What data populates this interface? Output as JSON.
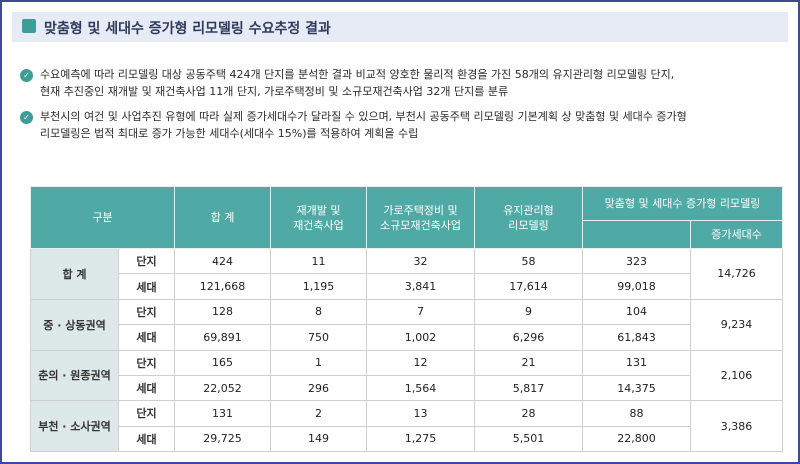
{
  "title": "맞춤형 및 세대수 증가형 리모델링 수요추정 결과",
  "bullets": [
    {
      "line1": "수요예측에 따라 리모델링 대상 공동주택 424개 단지를 분석한 결과 비교적 양호한 물리적 환경을 가진 58개의 유지관리형 리모델링 단지,",
      "line2": "현재 추진중인 재개발 및 재건축사업 11개 단지, 가로주택정비 및 소규모재건축사업 32개 단지를 분류"
    },
    {
      "line1": "부천시의 여건 및 사업추진 유형에 따라 실제 증가세대수가 달라질 수 있으며, 부천시 공동주택 리모델링 기본계획 상 맞춤형 및 세대수 증가형",
      "line2": "리모델링은 법적 최대로 증가 가능한 세대수(세대수 15%)를 적용하여 계획을 수립"
    }
  ],
  "table": {
    "headers": {
      "gubun": "구분",
      "total": "합 계",
      "redev": "재개발 및\n재건축사업",
      "street": "가로주택정비 및\n소규모재건축사업",
      "maint": "유지관리형\n리모델링",
      "custom": "맞춤형 및 세대수 증가형 리모델링",
      "increase": "증가세대수"
    },
    "rows": [
      {
        "region": "합 계",
        "type1": "단지",
        "vals1": [
          "424",
          "11",
          "32",
          "58",
          "323"
        ],
        "type2": "세대",
        "vals2": [
          "121,668",
          "1,195",
          "3,841",
          "17,614",
          "99,018"
        ],
        "increase": "14,726"
      },
      {
        "region": "중 · 상동권역",
        "type1": "단지",
        "vals1": [
          "128",
          "8",
          "7",
          "9",
          "104"
        ],
        "type2": "세대",
        "vals2": [
          "69,891",
          "750",
          "1,002",
          "6,296",
          "61,843"
        ],
        "increase": "9,234"
      },
      {
        "region": "춘의 · 원종권역",
        "type1": "단지",
        "vals1": [
          "165",
          "1",
          "12",
          "21",
          "131"
        ],
        "type2": "세대",
        "vals2": [
          "22,052",
          "296",
          "1,564",
          "5,817",
          "14,375"
        ],
        "increase": "2,106"
      },
      {
        "region": "부천 · 소사권역",
        "type1": "단지",
        "vals1": [
          "131",
          "2",
          "13",
          "28",
          "88"
        ],
        "type2": "세대",
        "vals2": [
          "29,725",
          "149",
          "1,275",
          "5,501",
          "22,800"
        ],
        "increase": "3,386"
      }
    ]
  }
}
